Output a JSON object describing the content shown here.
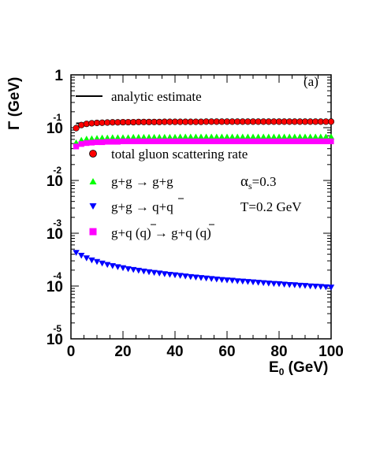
{
  "chart_data": {
    "type": "scatter",
    "panel_label": "(a)",
    "xlabel": "E0 (GeV)",
    "xlabel_main": "E",
    "xlabel_sub": "0",
    "xlabel_unit": " (GeV)",
    "ylabel": "Γ (GeV)",
    "xlim": [
      0,
      100
    ],
    "ylim": [
      1e-05,
      1
    ],
    "yscale": "log",
    "x_ticks": [
      "0",
      "20",
      "40",
      "60",
      "80",
      "100"
    ],
    "y_tick_labels": [
      {
        "base": "1",
        "exp": "",
        "value": 1
      },
      {
        "base": "10",
        "exp": "-1",
        "value": 0.1
      },
      {
        "base": "10",
        "exp": "-2",
        "value": 0.01
      },
      {
        "base": "10",
        "exp": "-3",
        "value": 0.001
      },
      {
        "base": "10",
        "exp": "-4",
        "value": 0.0001
      },
      {
        "base": "10",
        "exp": "-5",
        "value": 1e-05
      }
    ],
    "params": {
      "alpha_symbol": "α",
      "alpha_sub": "s",
      "alpha_value": "=0.3",
      "temperature": "T=0.2 GeV"
    },
    "series": [
      {
        "name": "analytic estimate",
        "mark": "line",
        "color": "#000000",
        "x": [
          2,
          100
        ],
        "y": [
          0.121,
          0.134
        ]
      },
      {
        "name": "total gluon scattering rate",
        "mark": "circle",
        "color": "#ff0000",
        "edge": "#000000",
        "x": [
          2,
          4,
          6,
          8,
          10,
          12,
          14,
          16,
          18,
          20,
          22,
          24,
          26,
          28,
          30,
          32,
          34,
          36,
          38,
          40,
          42,
          44,
          46,
          48,
          50,
          52,
          54,
          56,
          58,
          60,
          62,
          64,
          66,
          68,
          70,
          72,
          74,
          76,
          78,
          80,
          82,
          84,
          86,
          88,
          90,
          92,
          94,
          96,
          98,
          100
        ],
        "y": [
          0.098,
          0.112,
          0.118,
          0.121,
          0.123,
          0.124,
          0.125,
          0.126,
          0.126,
          0.127,
          0.127,
          0.127,
          0.128,
          0.128,
          0.128,
          0.128,
          0.128,
          0.129,
          0.129,
          0.129,
          0.129,
          0.129,
          0.129,
          0.129,
          0.129,
          0.13,
          0.13,
          0.13,
          0.13,
          0.13,
          0.13,
          0.13,
          0.13,
          0.13,
          0.13,
          0.13,
          0.13,
          0.13,
          0.13,
          0.13,
          0.13,
          0.13,
          0.13,
          0.13,
          0.13,
          0.13,
          0.13,
          0.13,
          0.13,
          0.13
        ]
      },
      {
        "name_parts": [
          "g+g ",
          "→",
          " g+g"
        ],
        "name": "g+g → g+g",
        "mark": "triangle-up",
        "color": "#00ff00",
        "x": [
          2,
          4,
          6,
          8,
          10,
          12,
          14,
          16,
          18,
          20,
          22,
          24,
          26,
          28,
          30,
          32,
          34,
          36,
          38,
          40,
          42,
          44,
          46,
          48,
          50,
          52,
          54,
          56,
          58,
          60,
          62,
          64,
          66,
          68,
          70,
          72,
          74,
          76,
          78,
          80,
          82,
          84,
          86,
          88,
          90,
          92,
          94,
          96,
          98,
          100
        ],
        "y": [
          0.052,
          0.058,
          0.061,
          0.062,
          0.063,
          0.064,
          0.064,
          0.065,
          0.065,
          0.065,
          0.065,
          0.066,
          0.066,
          0.066,
          0.066,
          0.066,
          0.066,
          0.066,
          0.066,
          0.066,
          0.067,
          0.067,
          0.067,
          0.067,
          0.067,
          0.067,
          0.067,
          0.067,
          0.067,
          0.067,
          0.067,
          0.067,
          0.067,
          0.067,
          0.067,
          0.067,
          0.067,
          0.067,
          0.067,
          0.067,
          0.067,
          0.067,
          0.067,
          0.067,
          0.067,
          0.067,
          0.067,
          0.067,
          0.067,
          0.067
        ]
      },
      {
        "name_parts": [
          "g+g ",
          "→",
          " q+",
          "q"
        ],
        "name": "g+g → q+q̄",
        "mark": "triangle-down",
        "color": "#0000ff",
        "x": [
          2,
          4,
          6,
          8,
          10,
          12,
          14,
          16,
          18,
          20,
          22,
          24,
          26,
          28,
          30,
          32,
          34,
          36,
          38,
          40,
          42,
          44,
          46,
          48,
          50,
          52,
          54,
          56,
          58,
          60,
          62,
          64,
          66,
          68,
          70,
          72,
          74,
          76,
          78,
          80,
          82,
          84,
          86,
          88,
          90,
          92,
          94,
          96,
          98,
          100
        ],
        "y": [
          0.00043,
          0.00038,
          0.00034,
          0.00031,
          0.00029,
          0.00027,
          0.000255,
          0.000242,
          0.000231,
          0.000221,
          0.000212,
          0.000205,
          0.000198,
          0.000191,
          0.000185,
          0.00018,
          0.000175,
          0.00017,
          0.000166,
          0.000162,
          0.000158,
          0.000154,
          0.00015,
          0.000147,
          0.000144,
          0.000141,
          0.000138,
          0.000135,
          0.000132,
          0.00013,
          0.000128,
          0.000125,
          0.000123,
          0.000121,
          0.000119,
          0.000117,
          0.000115,
          0.000113,
          0.000111,
          0.00011,
          0.000108,
          0.000106,
          0.000105,
          0.000103,
          0.000102,
          0.0001,
          9.88e-05,
          9.75e-05,
          9.62e-05,
          9.5e-05
        ]
      },
      {
        "name_parts": [
          "g+q (",
          "q",
          ") ",
          "→",
          " g+q (",
          "q",
          ")"
        ],
        "name": "g+q (q̄) → g+q (q̄)",
        "mark": "square",
        "color": "#ff00ff",
        "x": [
          2,
          4,
          6,
          8,
          10,
          12,
          14,
          16,
          18,
          20,
          22,
          24,
          26,
          28,
          30,
          32,
          34,
          36,
          38,
          40,
          42,
          44,
          46,
          48,
          50,
          52,
          54,
          56,
          58,
          60,
          62,
          64,
          66,
          68,
          70,
          72,
          74,
          76,
          78,
          80,
          82,
          84,
          86,
          88,
          90,
          92,
          94,
          96,
          98,
          100
        ],
        "y": [
          0.044,
          0.049,
          0.051,
          0.052,
          0.053,
          0.053,
          0.054,
          0.054,
          0.054,
          0.055,
          0.055,
          0.055,
          0.055,
          0.055,
          0.055,
          0.055,
          0.055,
          0.055,
          0.055,
          0.055,
          0.055,
          0.055,
          0.055,
          0.055,
          0.055,
          0.055,
          0.055,
          0.055,
          0.055,
          0.055,
          0.055,
          0.055,
          0.055,
          0.055,
          0.055,
          0.055,
          0.055,
          0.055,
          0.055,
          0.055,
          0.055,
          0.055,
          0.055,
          0.055,
          0.055,
          0.055,
          0.055,
          0.055,
          0.055,
          0.055
        ]
      }
    ]
  }
}
